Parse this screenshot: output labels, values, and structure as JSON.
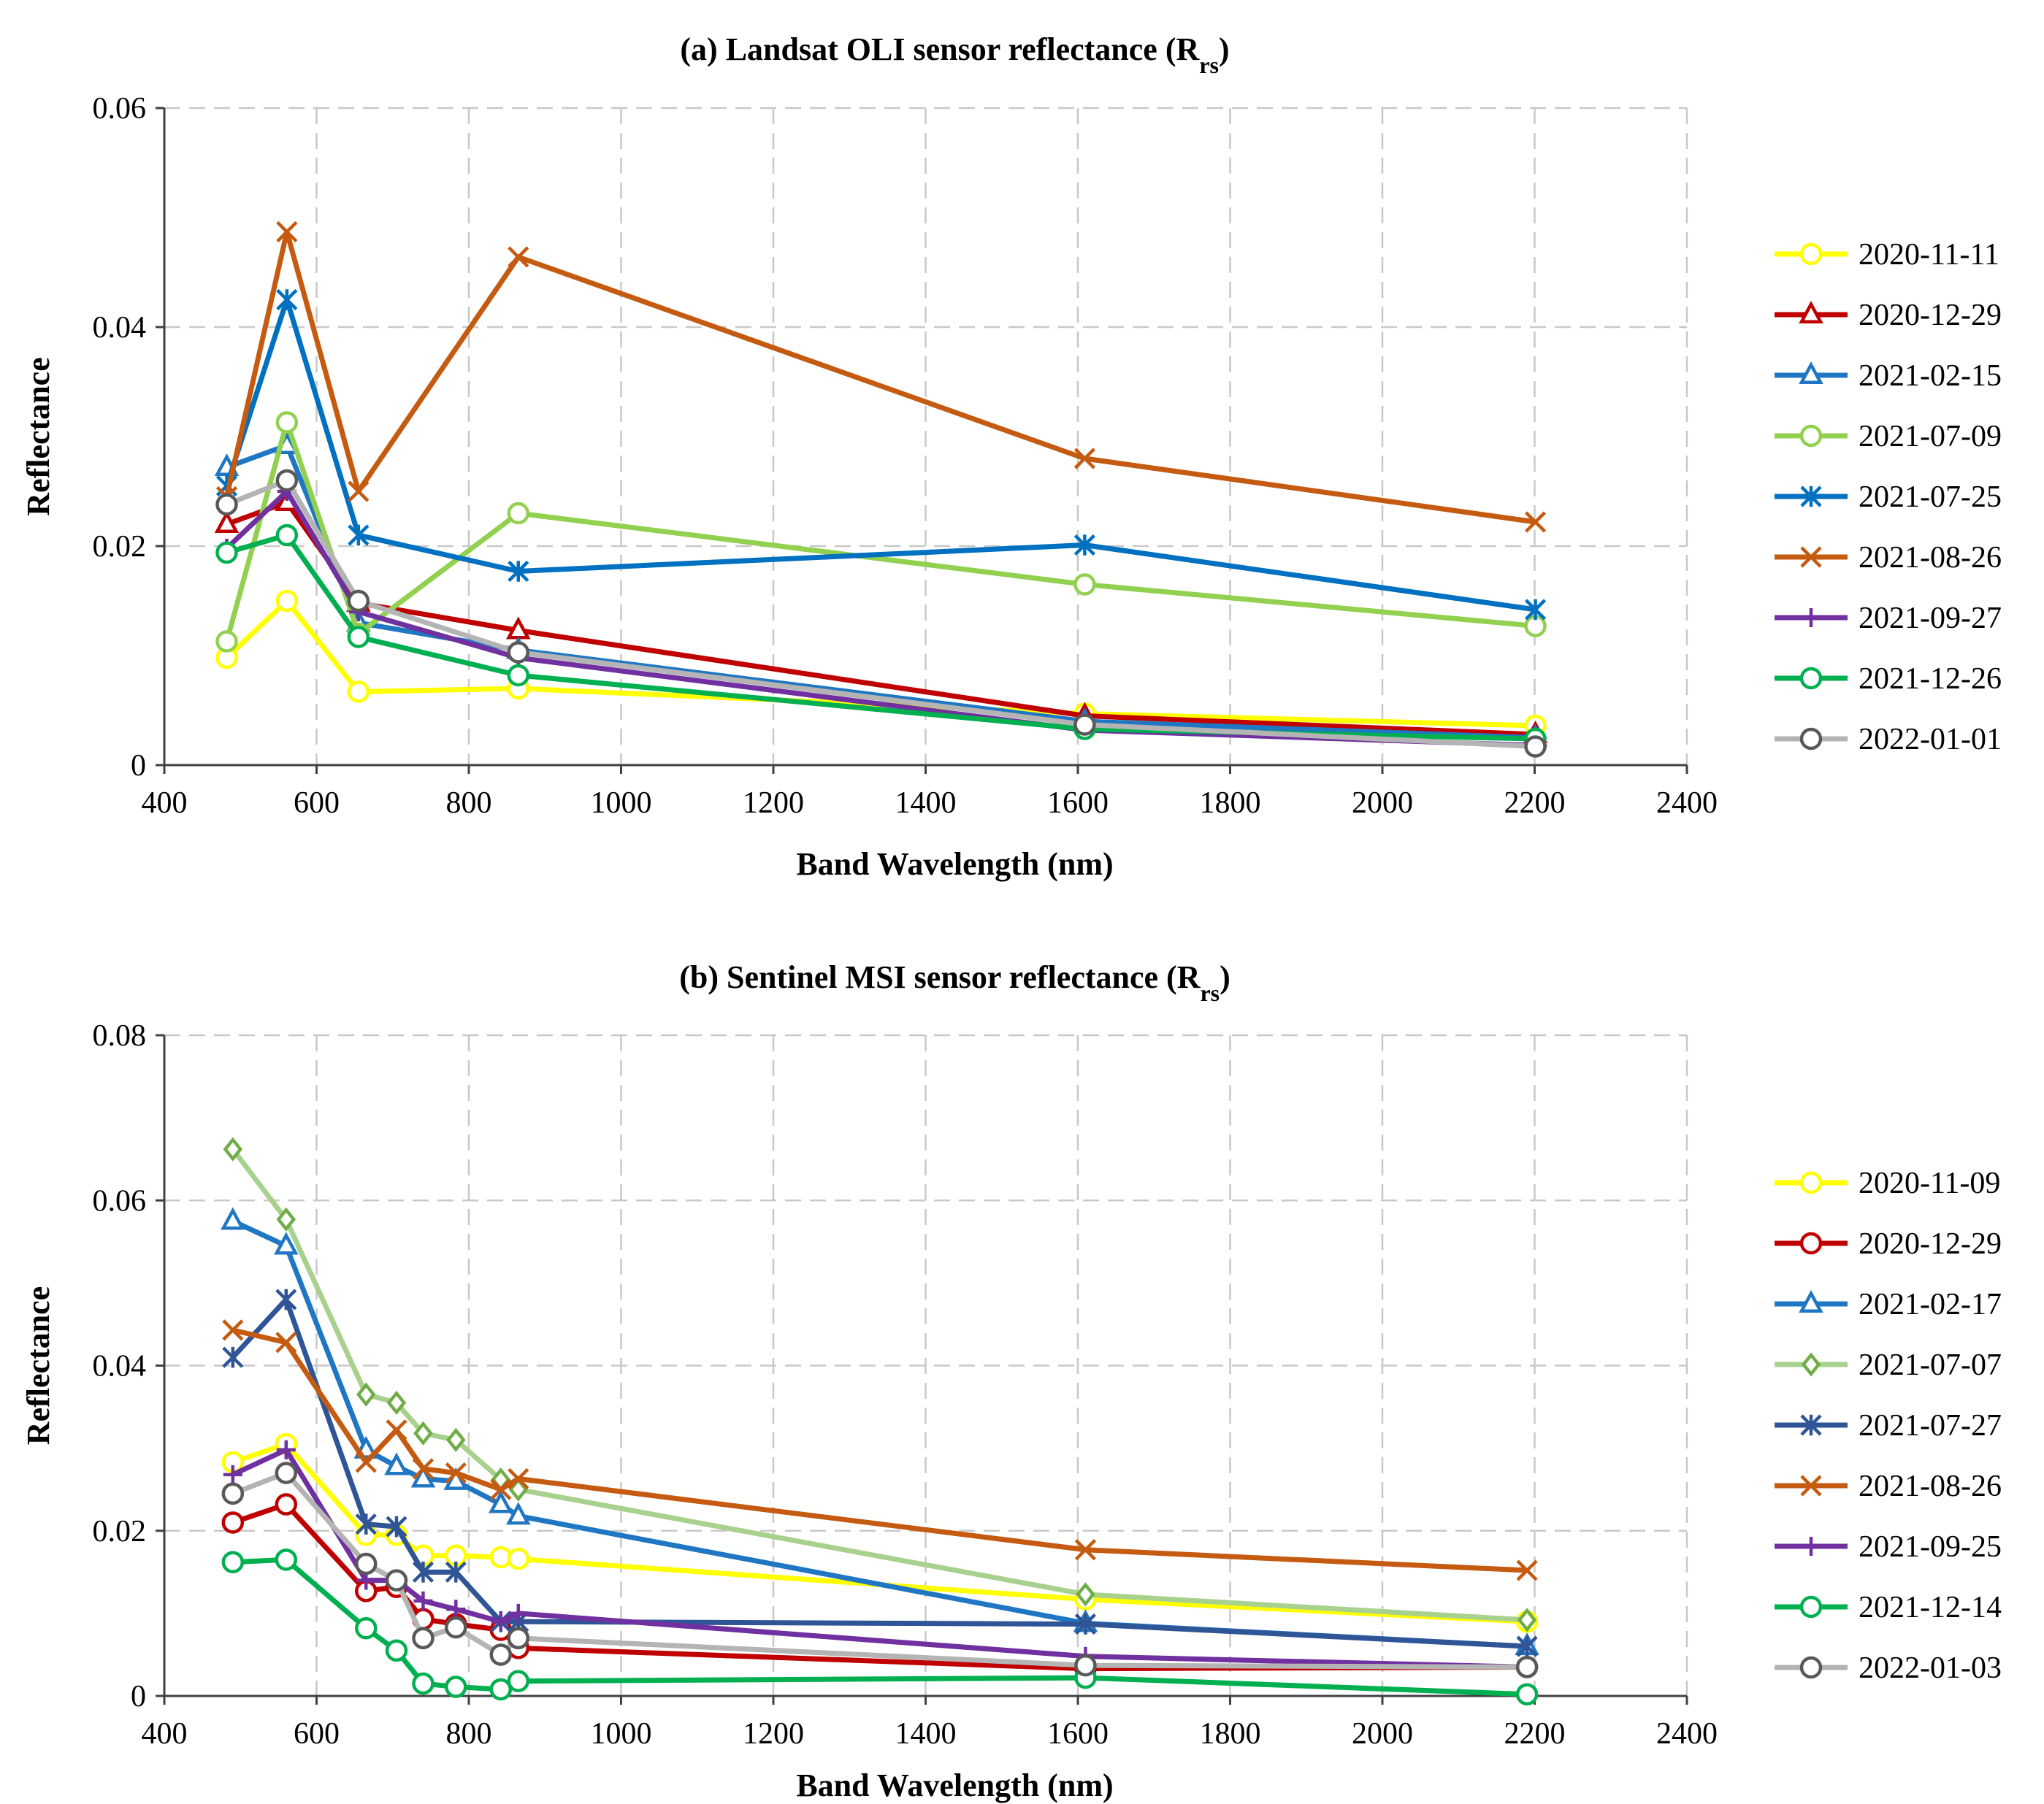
{
  "chart_data": [
    {
      "type": "line",
      "title": "(a) Landsat OLI sensor reflectance (R",
      "title_sub": "rs",
      "title_close": ")",
      "xlabel": "Band Wavelength (nm)",
      "ylabel": "Reflectance",
      "xlim": [
        400,
        2400
      ],
      "ylim": [
        0,
        0.06
      ],
      "xticks": [
        "400",
        "600",
        "800",
        "1000",
        "1200",
        "1400",
        "1600",
        "1800",
        "2000",
        "2200",
        "2400"
      ],
      "yticks": [
        "0",
        "0.02",
        "0.04",
        "0.06"
      ],
      "grid": true,
      "legend_position": "right",
      "x": [
        482,
        561,
        655,
        865,
        1609,
        2201
      ],
      "series": [
        {
          "name": "2020-11-11",
          "color": "#ffff00",
          "marker": "circle",
          "values": [
            0.0098,
            0.015,
            0.0067,
            0.007,
            0.0047,
            0.0036
          ]
        },
        {
          "name": "2020-12-29",
          "color": "#c00000",
          "marker": "triangle",
          "values": [
            0.022,
            0.024,
            0.0148,
            0.0123,
            0.0045,
            0.0028
          ]
        },
        {
          "name": "2021-02-15",
          "color": "#1f77c4",
          "marker": "triangle",
          "values": [
            0.0272,
            0.0292,
            0.013,
            0.0105,
            0.004,
            0.0025
          ]
        },
        {
          "name": "2021-07-09",
          "color": "#92d050",
          "marker": "circle",
          "values": [
            0.0113,
            0.0313,
            0.012,
            0.023,
            0.0165,
            0.0127
          ]
        },
        {
          "name": "2021-07-25",
          "color": "#0070c0",
          "marker": "star",
          "values": [
            0.0255,
            0.0425,
            0.021,
            0.0177,
            0.0201,
            0.0142
          ]
        },
        {
          "name": "2021-08-26",
          "color": "#c55a11",
          "marker": "x",
          "values": [
            0.0245,
            0.0487,
            0.025,
            0.0464,
            0.028,
            0.0222
          ]
        },
        {
          "name": "2021-09-27",
          "color": "#7030a0",
          "marker": "plus",
          "values": [
            0.0198,
            0.025,
            0.014,
            0.0098,
            0.0032,
            0.0018
          ]
        },
        {
          "name": "2021-12-26",
          "color": "#00b050",
          "marker": "circle",
          "values": [
            0.0194,
            0.021,
            0.0117,
            0.0082,
            0.0033,
            0.0024
          ]
        },
        {
          "name": "2022-01-01",
          "color": "#b4b4b4",
          "marker": "circle",
          "edge": "#595959",
          "values": [
            0.0238,
            0.026,
            0.015,
            0.0103,
            0.0037,
            0.0017
          ]
        }
      ]
    },
    {
      "type": "line",
      "title": "(b) Sentinel MSI sensor reflectance (R",
      "title_sub": "rs",
      "title_close": ")",
      "xlabel": "Band Wavelength (nm)",
      "ylabel": "Reflectance",
      "xlim": [
        400,
        2400
      ],
      "ylim": [
        0,
        0.08
      ],
      "xticks": [
        "400",
        "600",
        "800",
        "1000",
        "1200",
        "1400",
        "1600",
        "1800",
        "2000",
        "2200",
        "2400"
      ],
      "yticks": [
        "0",
        "0.02",
        "0.04",
        "0.06",
        "0.08"
      ],
      "grid": true,
      "legend_position": "right",
      "x": [
        490,
        560,
        665,
        705,
        740,
        783,
        842,
        865,
        1610,
        2190
      ],
      "series": [
        {
          "name": "2020-11-09",
          "color": "#ffff00",
          "marker": "circle",
          "values": [
            0.0283,
            0.0305,
            0.0195,
            0.0195,
            0.017,
            0.017,
            0.0168,
            0.0166,
            0.0117,
            0.009
          ]
        },
        {
          "name": "2020-12-29",
          "color": "#c00000",
          "marker": "circle",
          "values": [
            0.021,
            0.0232,
            0.0127,
            0.0132,
            0.0093,
            0.0087,
            0.008,
            0.0058,
            0.0033,
            0.0035
          ]
        },
        {
          "name": "2021-02-17",
          "color": "#1f77c4",
          "marker": "triangle",
          "values": [
            0.0575,
            0.0545,
            0.0298,
            0.0278,
            0.0263,
            0.026,
            0.0232,
            0.0218,
            0.0088,
            0.006
          ]
        },
        {
          "name": "2021-07-07",
          "color": "#a9d18e",
          "marker": "diamond",
          "edge": "#70ad47",
          "values": [
            0.0662,
            0.0577,
            0.0365,
            0.0355,
            0.0318,
            0.031,
            0.0262,
            0.025,
            0.0123,
            0.0092
          ]
        },
        {
          "name": "2021-07-27",
          "color": "#2f5597",
          "marker": "star",
          "values": [
            0.041,
            0.048,
            0.0208,
            0.0205,
            0.015,
            0.015,
            0.009,
            0.009,
            0.0087,
            0.006
          ]
        },
        {
          "name": "2021-08-26",
          "color": "#c55a11",
          "marker": "x",
          "values": [
            0.0443,
            0.0428,
            0.0283,
            0.0322,
            0.0275,
            0.027,
            0.025,
            0.0263,
            0.0177,
            0.0152
          ]
        },
        {
          "name": "2021-09-25",
          "color": "#7030a0",
          "marker": "plus",
          "values": [
            0.0268,
            0.0298,
            0.014,
            0.014,
            0.0115,
            0.0105,
            0.009,
            0.01,
            0.0048,
            0.0035
          ]
        },
        {
          "name": "2021-12-14",
          "color": "#00b050",
          "marker": "circle",
          "values": [
            0.0162,
            0.0165,
            0.0082,
            0.0055,
            0.0015,
            0.0011,
            0.0008,
            0.0018,
            0.0022,
            0.0002
          ]
        },
        {
          "name": "2022-01-03",
          "color": "#b4b4b4",
          "marker": "circle",
          "edge": "#595959",
          "values": [
            0.0245,
            0.027,
            0.016,
            0.014,
            0.007,
            0.0083,
            0.005,
            0.007,
            0.0037,
            0.0035
          ]
        }
      ]
    }
  ]
}
